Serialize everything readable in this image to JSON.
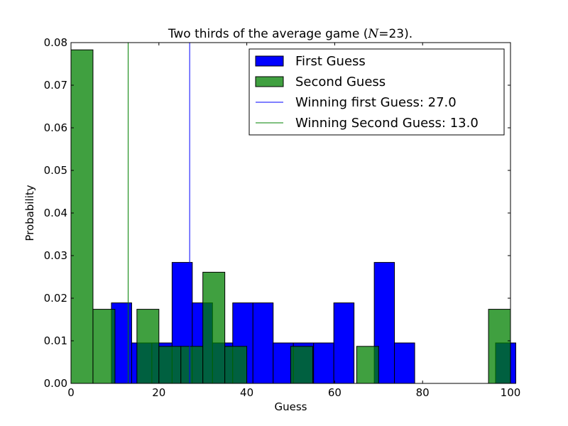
{
  "chart_data": {
    "type": "bar",
    "title_parts": {
      "pre": "Two thirds of the average game (",
      "math": "N",
      "eq": "=23",
      "post": ")."
    },
    "xlabel": "Guess",
    "ylabel": "Probability",
    "xlim": [
      0,
      100
    ],
    "ylim": [
      0,
      0.08
    ],
    "xticks": [
      0,
      20,
      40,
      60,
      80,
      100
    ],
    "xtick_labels": [
      "0",
      "20",
      "40",
      "60",
      "80",
      "100"
    ],
    "yticks": [
      0,
      0.01,
      0.02,
      0.03,
      0.04,
      0.05,
      0.06,
      0.07,
      0.08
    ],
    "ytick_labels": [
      "0.00",
      "0.01",
      "0.02",
      "0.03",
      "0.04",
      "0.05",
      "0.06",
      "0.07",
      "0.08"
    ],
    "legend_position": "top-right",
    "series": [
      {
        "name": "First Guess",
        "color": "#0000ff",
        "bin_start": 0.0,
        "bin_width": 4.6,
        "values": [
          0.0,
          0.0,
          0.0189,
          0.0095,
          0.0095,
          0.0284,
          0.0189,
          0.0095,
          0.0189,
          0.0189,
          0.0095,
          0.0095,
          0.0095,
          0.0189,
          0.0,
          0.0284,
          0.0095,
          0.0,
          0.0,
          0.0,
          0.0,
          0.0095
        ]
      },
      {
        "name": "Second Guess",
        "color": "#008000",
        "bin_start": 0.0,
        "bin_width": 5.0,
        "values": [
          0.0783,
          0.0174,
          0.0,
          0.0174,
          0.0087,
          0.0087,
          0.0261,
          0.0087,
          0.0,
          0.0,
          0.0087,
          0.0,
          0.0,
          0.0087,
          0.0,
          0.0,
          0.0,
          0.0,
          0.0,
          0.0174
        ]
      }
    ],
    "vlines": [
      {
        "name": "Winning first Guess: 27.0",
        "x": 27.0,
        "color": "#0000ff"
      },
      {
        "name": "Winning Second Guess: 13.0",
        "x": 13.0,
        "color": "#008000"
      }
    ]
  }
}
